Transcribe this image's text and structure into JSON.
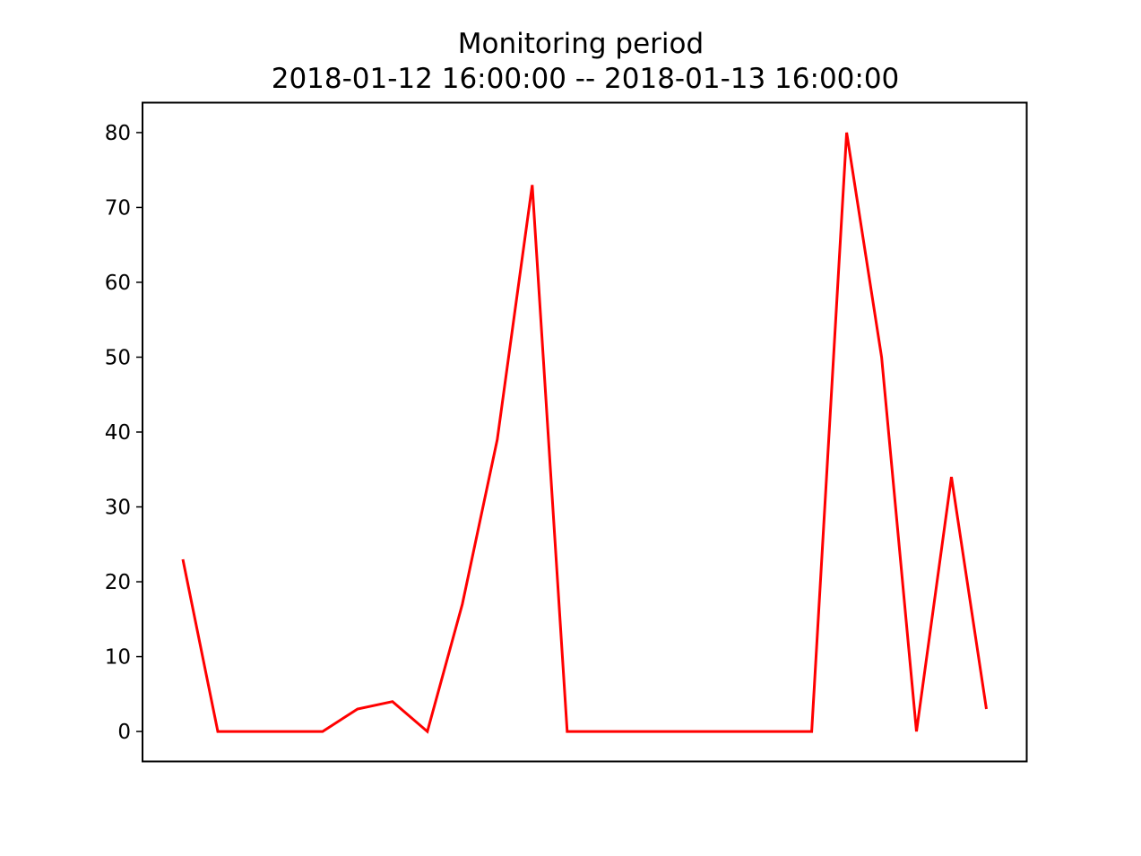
{
  "chart_data": {
    "type": "line",
    "title": "Monitoring period",
    "subtitle": "2018-01-12 16:00:00 -- 2018-01-13 16:00:00",
    "xlabel": "",
    "ylabel": "",
    "x_ticks_shown": false,
    "grid": false,
    "legend": "none",
    "ylim": [
      -4,
      84
    ],
    "yticks": [
      0,
      10,
      20,
      30,
      40,
      50,
      60,
      70,
      80
    ],
    "series": [
      {
        "color": "#ff0000",
        "values": [
          23,
          0,
          0,
          0,
          0,
          3,
          4,
          0,
          17,
          39,
          73,
          0,
          0,
          0,
          0,
          0,
          0,
          0,
          0,
          80,
          50,
          0,
          34,
          3
        ]
      }
    ]
  }
}
